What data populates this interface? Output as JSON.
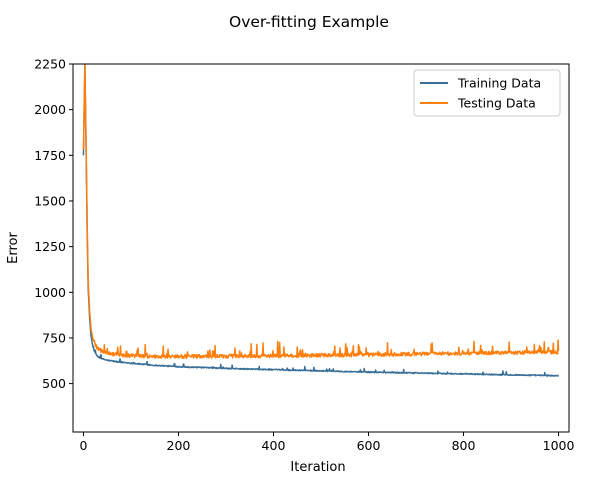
{
  "chart_data": {
    "type": "line",
    "title": "Over-fitting Example",
    "xlabel": "Iteration",
    "ylabel": "Error",
    "xlim": [
      -22,
      1022
    ],
    "ylim": [
      235,
      2250
    ],
    "x_ticks": [
      0,
      200,
      400,
      600,
      800,
      1000
    ],
    "y_ticks": [
      500,
      750,
      1000,
      1250,
      1500,
      1750,
      2000,
      2250
    ],
    "grid": false,
    "legend_position": "top-right",
    "series": [
      {
        "name": "Training Data",
        "color": "#3a6f98",
        "x": [
          0,
          3,
          6,
          8,
          10,
          13,
          16,
          20,
          25,
          30,
          40,
          50,
          70,
          100,
          150,
          200,
          300,
          400,
          500,
          600,
          700,
          800,
          900,
          1000
        ],
        "values": [
          1750,
          2250,
          1700,
          1300,
          1020,
          860,
          760,
          700,
          665,
          648,
          635,
          628,
          620,
          612,
          600,
          593,
          583,
          576,
          570,
          563,
          558,
          553,
          548,
          543
        ]
      },
      {
        "name": "Testing Data",
        "color": "#ff7f0e",
        "x": [
          0,
          3,
          6,
          8,
          10,
          13,
          16,
          20,
          25,
          30,
          40,
          50,
          70,
          100,
          150,
          200,
          300,
          400,
          500,
          600,
          700,
          800,
          900,
          1000
        ],
        "values": [
          1780,
          2250,
          1750,
          1350,
          1060,
          900,
          800,
          745,
          712,
          692,
          675,
          665,
          658,
          652,
          648,
          648,
          650,
          652,
          655,
          658,
          662,
          665,
          670,
          672
        ]
      }
    ]
  }
}
